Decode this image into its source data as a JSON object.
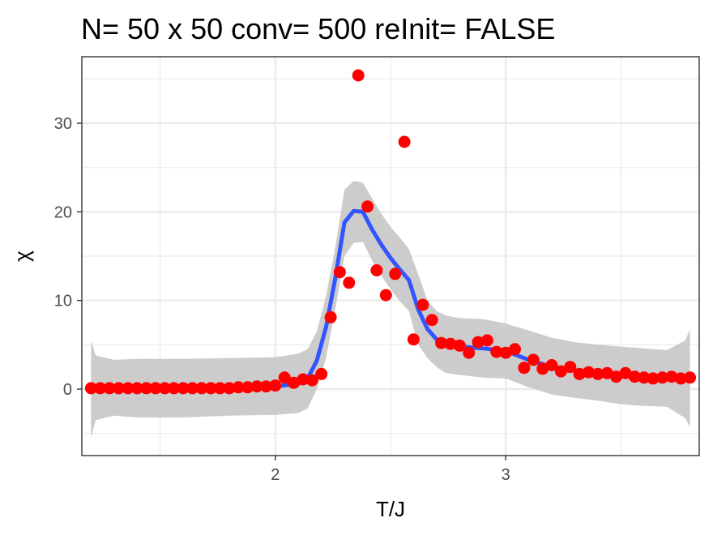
{
  "chart_data": {
    "type": "scatter",
    "title": "N= 50 x 50  conv= 500  reInit= FALSE",
    "xlabel": "T/J",
    "ylabel": "χ",
    "xlim": [
      1.16,
      3.84
    ],
    "ylim": [
      -7.5,
      37.5
    ],
    "x_ticks": [
      2,
      3
    ],
    "x_tick_labels": [
      "2",
      "3"
    ],
    "y_ticks": [
      0,
      10,
      20,
      30
    ],
    "y_tick_labels": [
      "0",
      "10",
      "20",
      "30"
    ],
    "x_minor_ticks": [
      1.5,
      2.5,
      3.5
    ],
    "y_minor_ticks": [
      -5,
      5,
      15,
      25,
      35
    ],
    "grid": true,
    "legend": "none",
    "colors": {
      "points": "#ff0000",
      "smooth_line": "#3355ff",
      "confidence_band": "#cccccc",
      "grid": "#ebebeb",
      "panel_border": "#333333",
      "tick_text": "#4d4d4d"
    },
    "series": [
      {
        "kind": "points",
        "x": [
          1.2,
          1.24,
          1.28,
          1.32,
          1.36,
          1.4,
          1.44,
          1.48,
          1.52,
          1.56,
          1.6,
          1.64,
          1.68,
          1.72,
          1.76,
          1.8,
          1.84,
          1.88,
          1.92,
          1.96,
          2.0,
          2.04,
          2.08,
          2.12,
          2.16,
          2.2,
          2.24,
          2.28,
          2.32,
          2.36,
          2.4,
          2.44,
          2.48,
          2.52,
          2.56,
          2.6,
          2.64,
          2.68,
          2.72,
          2.76,
          2.8,
          2.84,
          2.88,
          2.92,
          2.96,
          3.0,
          3.04,
          3.08,
          3.12,
          3.16,
          3.2,
          3.24,
          3.28,
          3.32,
          3.36,
          3.4,
          3.44,
          3.48,
          3.52,
          3.56,
          3.6,
          3.64,
          3.68,
          3.72,
          3.76,
          3.8
        ],
        "y": [
          0.1,
          0.1,
          0.1,
          0.1,
          0.1,
          0.1,
          0.1,
          0.1,
          0.1,
          0.1,
          0.1,
          0.1,
          0.1,
          0.1,
          0.1,
          0.1,
          0.2,
          0.2,
          0.3,
          0.3,
          0.4,
          1.3,
          0.7,
          1.1,
          1.0,
          1.7,
          8.1,
          13.2,
          12.0,
          35.4,
          20.6,
          13.4,
          10.6,
          13.0,
          27.9,
          5.6,
          9.5,
          7.8,
          5.2,
          5.1,
          4.9,
          4.1,
          5.3,
          5.5,
          4.2,
          4.1,
          4.5,
          2.4,
          3.3,
          2.3,
          2.7,
          2.0,
          2.5,
          1.7,
          1.9,
          1.7,
          1.8,
          1.4,
          1.8,
          1.4,
          1.3,
          1.2,
          1.3,
          1.4,
          1.2,
          1.3
        ]
      },
      {
        "kind": "smooth",
        "x": [
          1.2,
          1.4,
          1.6,
          1.8,
          2.0,
          2.1,
          2.14,
          2.18,
          2.22,
          2.26,
          2.3,
          2.34,
          2.38,
          2.42,
          2.46,
          2.5,
          2.54,
          2.58,
          2.62,
          2.66,
          2.7,
          2.74,
          2.8,
          2.9,
          3.0,
          3.1,
          3.2,
          3.3,
          3.4,
          3.5,
          3.6,
          3.7,
          3.8
        ],
        "y": [
          0.1,
          0.1,
          0.1,
          0.2,
          0.3,
          0.6,
          1.2,
          3.2,
          7.0,
          12.5,
          18.8,
          20.1,
          20.0,
          18.0,
          16.3,
          14.8,
          13.5,
          12.3,
          9.0,
          6.8,
          5.6,
          5.0,
          4.8,
          4.6,
          4.3,
          3.3,
          2.5,
          2.1,
          1.8,
          1.5,
          1.3,
          1.3,
          1.3
        ]
      },
      {
        "kind": "band",
        "x": [
          1.2,
          1.22,
          1.3,
          1.4,
          1.6,
          1.8,
          2.0,
          2.1,
          2.14,
          2.18,
          2.22,
          2.26,
          2.3,
          2.34,
          2.38,
          2.42,
          2.46,
          2.5,
          2.54,
          2.58,
          2.62,
          2.66,
          2.7,
          2.74,
          2.8,
          2.9,
          3.0,
          3.1,
          3.2,
          3.3,
          3.4,
          3.5,
          3.6,
          3.7,
          3.78,
          3.8
        ],
        "upper": [
          5.5,
          3.8,
          3.3,
          3.4,
          3.4,
          3.5,
          3.6,
          4.0,
          4.5,
          6.5,
          10.5,
          16.0,
          22.5,
          23.5,
          23.3,
          21.5,
          19.8,
          18.3,
          17.1,
          15.8,
          13.0,
          10.0,
          8.8,
          8.3,
          8.0,
          7.9,
          7.4,
          6.6,
          5.8,
          5.3,
          5.0,
          4.8,
          4.6,
          4.4,
          5.5,
          6.8
        ],
        "lower": [
          -5.5,
          -3.5,
          -3.0,
          -3.2,
          -3.2,
          -3.0,
          -2.9,
          -2.7,
          -2.2,
          0.0,
          3.5,
          9.0,
          15.0,
          16.5,
          16.6,
          14.5,
          12.8,
          11.3,
          9.9,
          8.8,
          5.0,
          3.5,
          2.5,
          1.8,
          1.6,
          1.3,
          1.2,
          0.2,
          -0.6,
          -1.0,
          -1.3,
          -1.7,
          -1.9,
          -2.0,
          -3.3,
          -4.3
        ]
      }
    ]
  }
}
